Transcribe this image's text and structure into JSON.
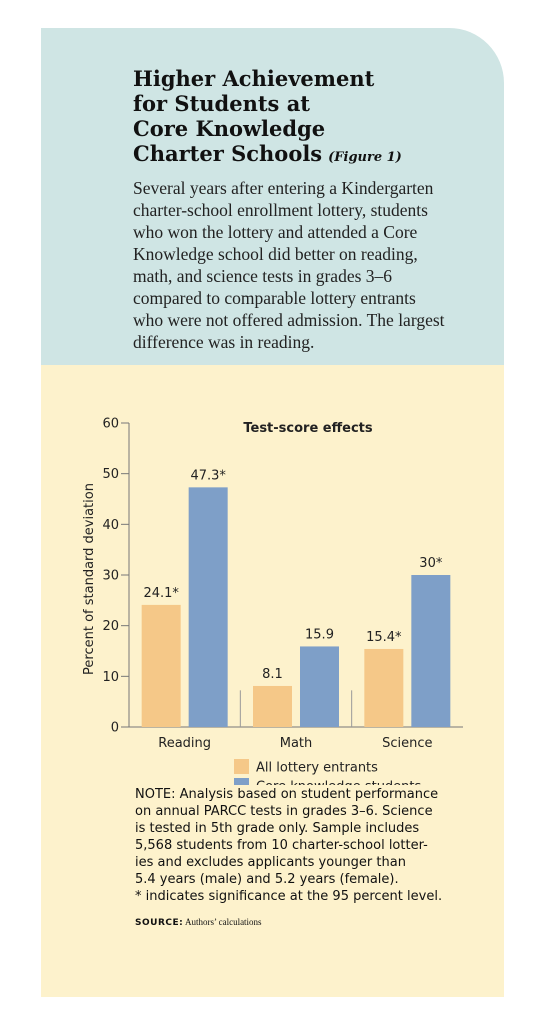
{
  "header": {
    "title_lines": [
      "Higher Achievement",
      "for Students at",
      "Core Knowledge",
      "Charter Schools"
    ],
    "figure_label": "(Figure 1)",
    "deck_lines": [
      "Several years after entering a Kindergarten",
      "charter-school enrollment lottery, students",
      "who won the lottery and attended a Core",
      "Knowledge school did better on reading,",
      "math, and science tests in grades 3–6",
      "compared to comparable lottery entrants",
      "who were not offered admission. The largest",
      "difference was in reading."
    ]
  },
  "chart_data": {
    "type": "bar",
    "title": "Test-score effects",
    "xlabel": "",
    "ylabel": "Percent of standard deviation",
    "ylim": [
      0,
      60
    ],
    "yticks": [
      0,
      10,
      20,
      30,
      40,
      50,
      60
    ],
    "categories": [
      "Reading",
      "Math",
      "Science"
    ],
    "series": [
      {
        "name": "All lottery entrants",
        "values": [
          24.1,
          8.1,
          15.4
        ],
        "labels": [
          "24.1*",
          "8.1",
          "15.4*"
        ],
        "color": "#f5c888"
      },
      {
        "name": "Core knowledge students",
        "values": [
          47.3,
          15.9,
          30
        ],
        "labels": [
          "47.3*",
          "15.9",
          "30*"
        ],
        "color": "#7e9fc8"
      }
    ],
    "legend_position": "bottom",
    "grid": false
  },
  "note_lines": [
    "NOTE: Analysis based on student performance",
    "on annual PARCC tests in grades 3–6. Science",
    "is tested in 5th grade only. Sample includes",
    "5,568 students from 10 charter-school lotter-",
    "ies and excludes applicants younger than",
    "5.4 years (male) and 5.2 years (female).",
    "* indicates significance at the 95 percent level."
  ],
  "source": {
    "label": "SOURCE:",
    "text": "Authors’ calculations"
  }
}
